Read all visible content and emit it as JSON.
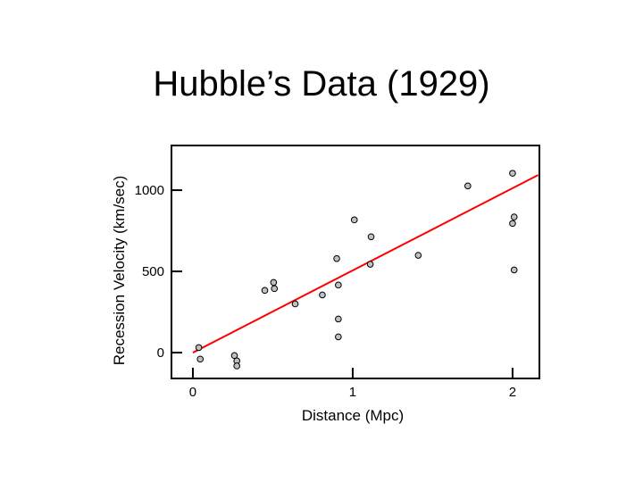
{
  "chart_data": {
    "type": "scatter",
    "title": "Hubble’s Data (1929)",
    "xlabel": "Distance (Mpc)",
    "ylabel": "Recession Velocity (km/sec)",
    "xlim": [
      -0.134,
      2.168
    ],
    "ylim": [
      -159,
      1275
    ],
    "xticks": [
      {
        "value": 0,
        "label": "0"
      },
      {
        "value": 1,
        "label": "1"
      },
      {
        "value": 2,
        "label": "2"
      }
    ],
    "yticks": [
      {
        "value": 0,
        "label": "0"
      },
      {
        "value": 500,
        "label": "500"
      },
      {
        "value": 1000,
        "label": "1000"
      }
    ],
    "grid": false,
    "points": [
      [
        0.037,
        31
      ],
      [
        0.046,
        -40
      ],
      [
        0.26,
        -18
      ],
      [
        0.275,
        -51
      ],
      [
        0.275,
        -82
      ],
      [
        0.45,
        383
      ],
      [
        0.505,
        432
      ],
      [
        0.51,
        394
      ],
      [
        0.64,
        300
      ],
      [
        0.81,
        355
      ],
      [
        0.9,
        579
      ],
      [
        0.91,
        416
      ],
      [
        0.91,
        207
      ],
      [
        0.91,
        97
      ],
      [
        1.01,
        817
      ],
      [
        1.115,
        713
      ],
      [
        1.11,
        544
      ],
      [
        1.41,
        599
      ],
      [
        1.72,
        1026
      ],
      [
        2.0,
        1104
      ],
      [
        2.01,
        835
      ],
      [
        2.0,
        795
      ],
      [
        2.01,
        509
      ]
    ],
    "fit_line": {
      "x": [
        0,
        2.16
      ],
      "y": [
        0,
        1093
      ],
      "color": "#ff0000"
    },
    "marker_color": "#c0c0c0"
  }
}
